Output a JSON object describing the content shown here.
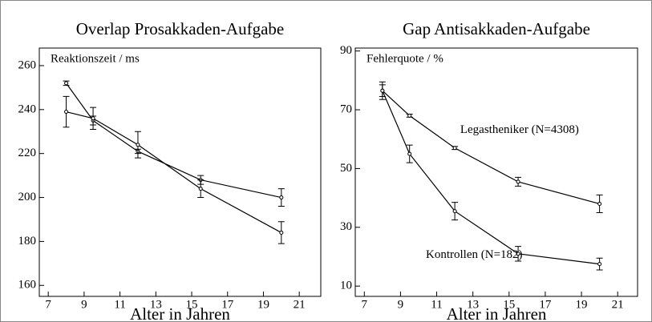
{
  "chart_data": [
    {
      "type": "line",
      "title": "Overlap Prosakkaden-Aufgabe",
      "y_label": "Reaktionszeit / ms",
      "x_label": "Alter in Jahren",
      "xlim": [
        6.5,
        22.2
      ],
      "xticks": [
        7,
        9,
        11,
        13,
        15,
        17,
        19,
        21
      ],
      "ylim": [
        155,
        268
      ],
      "yticks": [
        160,
        180,
        200,
        220,
        240,
        260
      ],
      "series": [
        {
          "color": "#000000",
          "x": [
            8,
            9.5,
            12,
            15.5,
            20
          ],
          "values": [
            252,
            235,
            221,
            208,
            200
          ],
          "errors": [
            1,
            2,
            1,
            2,
            4
          ]
        },
        {
          "color": "#000000",
          "x": [
            8,
            9.5,
            12,
            15.5,
            20
          ],
          "values": [
            239,
            236,
            224,
            204,
            184
          ],
          "errors": [
            7,
            5,
            6,
            4,
            5
          ]
        }
      ]
    },
    {
      "type": "line",
      "title": "Gap Antisakkaden-Aufgabe",
      "y_label": "Fehlerquote / %",
      "x_label": "Alter in Jahren",
      "xlim": [
        6.5,
        22.1
      ],
      "xticks": [
        7,
        9,
        11,
        13,
        15,
        17,
        19,
        21
      ],
      "ylim": [
        6.5,
        91
      ],
      "yticks": [
        10,
        30,
        50,
        70,
        90
      ],
      "series": [
        {
          "name": "Legastheniker (N=4308)",
          "color": "#000000",
          "x": [
            8,
            9.5,
            12,
            15.5,
            20
          ],
          "values": [
            76.5,
            68,
            57,
            45.5,
            38
          ],
          "errors": [
            2,
            0.5,
            0.5,
            1.5,
            3
          ]
        },
        {
          "name": "Kontrollen (N=182)",
          "color": "#000000",
          "x": [
            8,
            9.5,
            12,
            15.5,
            20
          ],
          "values": [
            76.5,
            55,
            35.5,
            21,
            17.5
          ],
          "errors": [
            3,
            3,
            3,
            2.5,
            2
          ]
        }
      ]
    }
  ]
}
